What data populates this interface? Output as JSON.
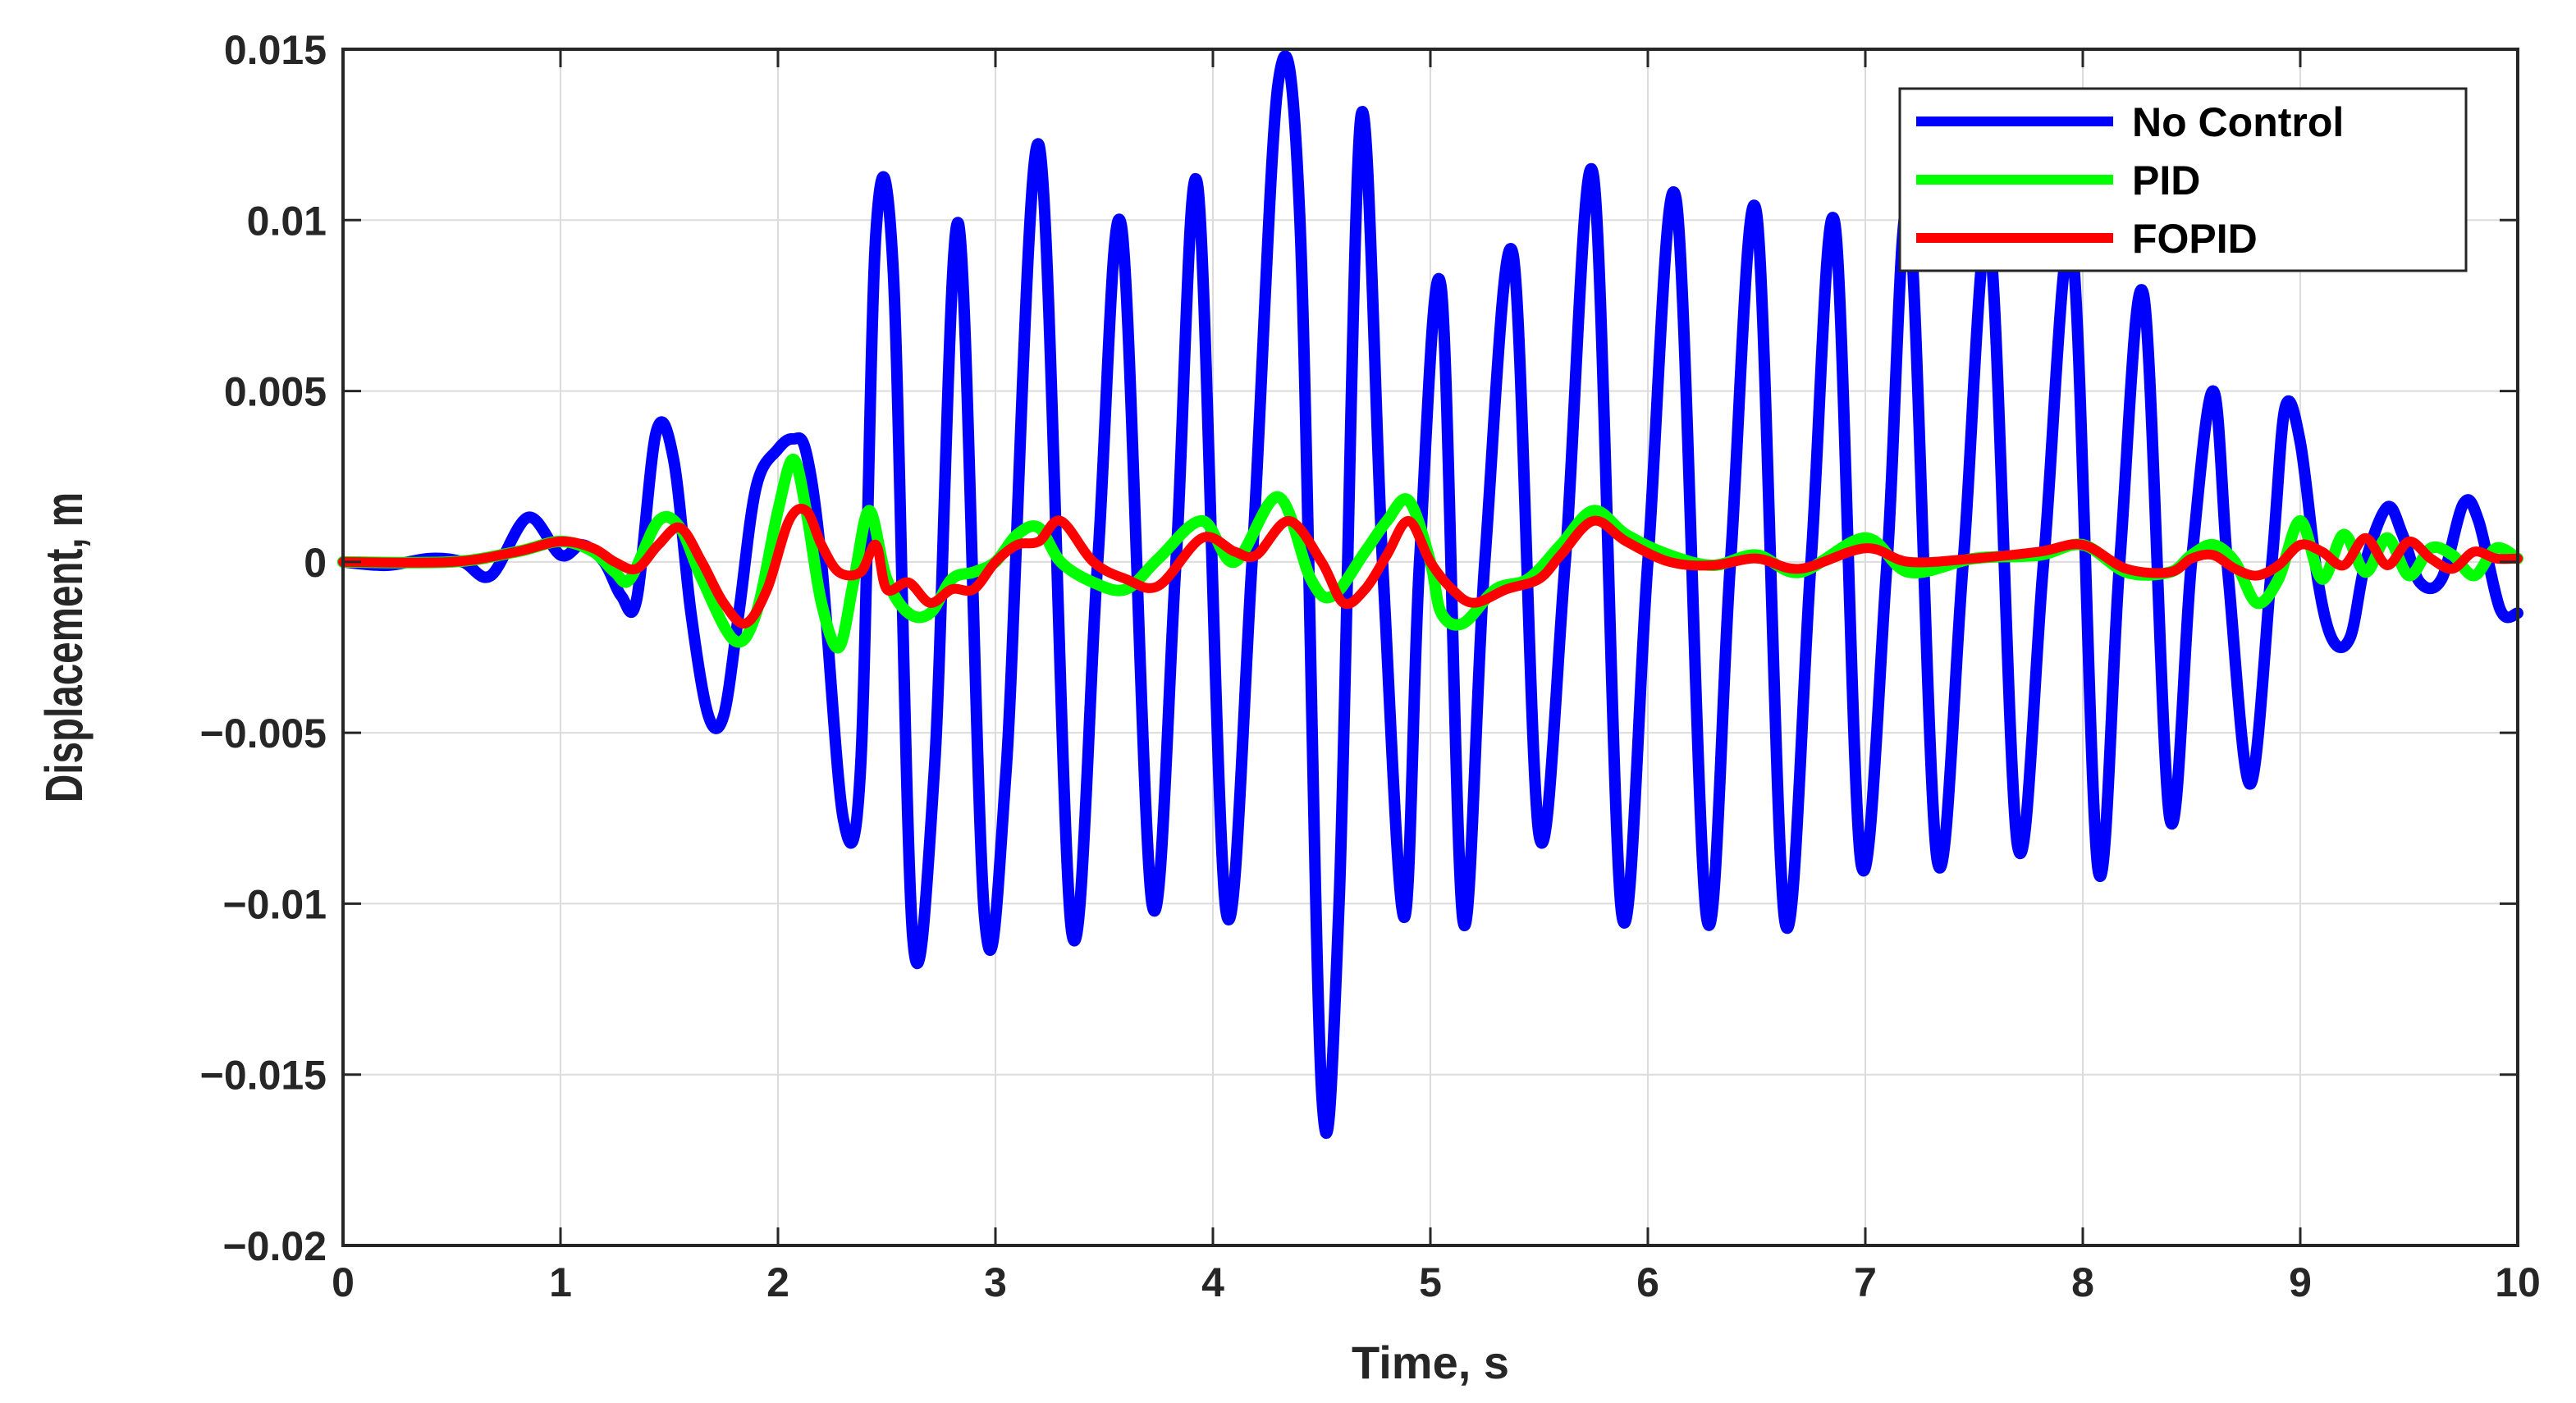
{
  "chart_data": {
    "type": "line",
    "xlabel": "Time, s",
    "ylabel": "Displacement, m",
    "xlim": [
      0,
      10
    ],
    "ylim": [
      -0.02,
      0.015
    ],
    "x_ticks": [
      0,
      1,
      2,
      3,
      4,
      5,
      6,
      7,
      8,
      9,
      10
    ],
    "x_tick_labels": [
      "0",
      "1",
      "2",
      "3",
      "4",
      "5",
      "6",
      "7",
      "8",
      "9",
      "10"
    ],
    "y_ticks": [
      -0.02,
      -0.015,
      -0.01,
      -0.005,
      0,
      0.005,
      0.01,
      0.015
    ],
    "y_tick_labels": [
      "−0.02",
      "−0.015",
      "−0.01",
      "−0.005",
      "0",
      "0.005",
      "0.01",
      "0.015"
    ],
    "grid": true,
    "legend_position": "top-right",
    "series": [
      {
        "name": "No Control",
        "color": "#0000ff",
        "x": [
          0,
          0.2,
          0.4,
          0.55,
          0.68,
          0.85,
          1.0,
          1.1,
          1.2,
          1.28,
          1.35,
          1.44,
          1.52,
          1.6,
          1.68,
          1.75,
          1.82,
          1.9,
          2.0,
          2.07,
          2.13,
          2.2,
          2.3,
          2.38,
          2.45,
          2.53,
          2.62,
          2.72,
          2.83,
          2.95,
          3.05,
          3.2,
          3.35,
          3.47,
          3.58,
          3.72,
          3.83,
          3.93,
          4.06,
          4.18,
          4.3,
          4.4,
          4.5,
          4.58,
          4.68,
          4.78,
          4.88,
          4.95,
          5.05,
          5.15,
          5.25,
          5.38,
          5.5,
          5.62,
          5.75,
          5.88,
          6.0,
          6.13,
          6.27,
          6.38,
          6.5,
          6.63,
          6.75,
          6.86,
          6.98,
          7.1,
          7.2,
          7.33,
          7.45,
          7.57,
          7.7,
          7.82,
          7.95,
          8.07,
          8.17,
          8.28,
          8.4,
          8.5,
          8.6,
          8.67,
          8.77,
          8.87,
          8.93,
          9.0,
          9.08,
          9.15,
          9.23,
          9.3,
          9.4,
          9.47,
          9.55,
          9.65,
          9.75,
          9.82,
          9.92,
          10.0
        ],
        "y": [
          0,
          -0.0001,
          0.0001,
          0,
          -0.0004,
          0.0013,
          0.0002,
          0.0005,
          0,
          -0.001,
          -0.0011,
          0.0038,
          0.003,
          -0.0015,
          -0.0045,
          -0.0045,
          -0.0015,
          0.0022,
          0.0033,
          0.0036,
          0.0032,
          0.0,
          -0.0075,
          -0.006,
          0.0096,
          0.0085,
          -0.011,
          -0.006,
          0.0099,
          -0.0104,
          -0.006,
          0.0122,
          -0.0108,
          0.0,
          0.0098,
          -0.01,
          0.0,
          0.011,
          -0.0102,
          0.0,
          0.014,
          0.01,
          -0.0155,
          -0.01,
          0.013,
          0.0,
          -0.0104,
          0.0,
          0.008,
          -0.0105,
          0.0,
          0.009,
          -0.008,
          0.0,
          0.0113,
          -0.0103,
          0.0,
          0.0106,
          -0.0104,
          0.0,
          0.0102,
          -0.0105,
          0.0,
          0.0099,
          -0.0088,
          0.0,
          0.0102,
          -0.0087,
          0.0,
          0.0095,
          -0.0083,
          0.0,
          0.0092,
          -0.009,
          0.0,
          0.0078,
          -0.0075,
          0.0,
          0.005,
          -0.0005,
          -0.0065,
          0.0,
          0.0045,
          0.0035,
          -0.0005,
          -0.0023,
          -0.0022,
          0.0,
          0.0016,
          0.0008,
          -0.0006,
          -0.0005,
          0.0017,
          0.0012,
          -0.0014,
          -0.0015
        ]
      },
      {
        "name": "PID",
        "color": "#00ff00",
        "x": [
          0,
          0.5,
          0.8,
          1.0,
          1.15,
          1.25,
          1.32,
          1.45,
          1.55,
          1.65,
          1.8,
          1.9,
          2.0,
          2.07,
          2.13,
          2.2,
          2.28,
          2.35,
          2.42,
          2.5,
          2.6,
          2.7,
          2.8,
          2.9,
          3.0,
          3.1,
          3.2,
          3.3,
          3.45,
          3.6,
          3.75,
          3.95,
          4.1,
          4.3,
          4.45,
          4.55,
          4.7,
          4.8,
          4.9,
          5.0,
          5.05,
          5.15,
          5.3,
          5.45,
          5.6,
          5.75,
          5.9,
          6.1,
          6.3,
          6.5,
          6.7,
          7.0,
          7.2,
          7.5,
          7.8,
          8.0,
          8.2,
          8.4,
          8.5,
          8.6,
          8.7,
          8.8,
          8.9,
          9.0,
          9.1,
          9.2,
          9.3,
          9.4,
          9.5,
          9.6,
          9.7,
          9.8,
          9.9,
          10.0
        ],
        "y": [
          0,
          0,
          0.0003,
          0.0006,
          0.0003,
          -0.0003,
          -0.0005,
          0.0012,
          0.001,
          -0.0005,
          -0.0023,
          -0.0015,
          0.0015,
          0.003,
          0.0015,
          -0.0012,
          -0.0025,
          -0.0005,
          0.0015,
          -0.0005,
          -0.0015,
          -0.0015,
          -0.0005,
          -0.0003,
          0.0,
          0.0008,
          0.001,
          0.0,
          -0.0006,
          -0.0008,
          0.0001,
          0.0012,
          0.0,
          0.0019,
          -0.0005,
          -0.001,
          0.0003,
          0.0012,
          0.0018,
          0.0,
          -0.0015,
          -0.0018,
          -0.0008,
          -0.0005,
          0.0005,
          0.0015,
          0.0008,
          0.0002,
          -0.0001,
          0.0002,
          -0.0003,
          0.0007,
          -0.0003,
          0.0001,
          0.0002,
          0.0005,
          -0.0003,
          -0.0003,
          0.0002,
          0.0005,
          0.0,
          -0.0012,
          -0.0005,
          0.0012,
          -0.0005,
          0.0008,
          -0.0003,
          0.0007,
          -0.0004,
          0.0004,
          0.0002,
          -0.0004,
          0.0004,
          0.0001
        ]
      },
      {
        "name": "FOPID",
        "color": "#ff0000",
        "x": [
          0,
          0.5,
          0.8,
          1.0,
          1.15,
          1.25,
          1.35,
          1.45,
          1.55,
          1.65,
          1.75,
          1.85,
          1.95,
          2.05,
          2.13,
          2.2,
          2.28,
          2.38,
          2.45,
          2.5,
          2.6,
          2.7,
          2.8,
          2.9,
          3.0,
          3.1,
          3.2,
          3.3,
          3.45,
          3.6,
          3.75,
          3.95,
          4.1,
          4.2,
          4.35,
          4.5,
          4.6,
          4.7,
          4.8,
          4.9,
          5.0,
          5.1,
          5.2,
          5.35,
          5.5,
          5.6,
          5.75,
          5.9,
          6.1,
          6.3,
          6.5,
          6.7,
          7.0,
          7.2,
          7.5,
          7.8,
          8.0,
          8.2,
          8.4,
          8.5,
          8.6,
          8.7,
          8.8,
          8.9,
          9.0,
          9.1,
          9.2,
          9.3,
          9.4,
          9.5,
          9.6,
          9.7,
          9.8,
          9.9,
          10.0
        ],
        "y": [
          0,
          0,
          0.0003,
          0.0006,
          0.0004,
          0.0,
          -0.0002,
          0.0005,
          0.001,
          0.0,
          -0.0012,
          -0.0018,
          -0.0008,
          0.0012,
          0.0015,
          0.0005,
          -0.0003,
          -0.0003,
          0.0005,
          -0.0008,
          -0.0006,
          -0.0012,
          -0.0008,
          -0.0008,
          0.0,
          0.0005,
          0.0006,
          0.0012,
          0.0,
          -0.0005,
          -0.0007,
          0.0007,
          0.0003,
          0.0002,
          0.0012,
          0.0,
          -0.0012,
          -0.0008,
          0.0002,
          0.0012,
          0.0,
          -0.0008,
          -0.0012,
          -0.0008,
          -0.0005,
          0.0002,
          0.0012,
          0.0006,
          0.0,
          -0.0001,
          0.0001,
          -0.0002,
          0.0004,
          0.0,
          0.0001,
          0.0003,
          0.0005,
          -0.0002,
          -0.0003,
          0.0001,
          0.0002,
          -0.0002,
          -0.0004,
          -0.0001,
          0.0005,
          0.0003,
          -0.0001,
          0.0007,
          -0.0001,
          0.0006,
          0.0001,
          -0.0002,
          0.0003,
          0.0001,
          0.0001
        ]
      }
    ]
  }
}
